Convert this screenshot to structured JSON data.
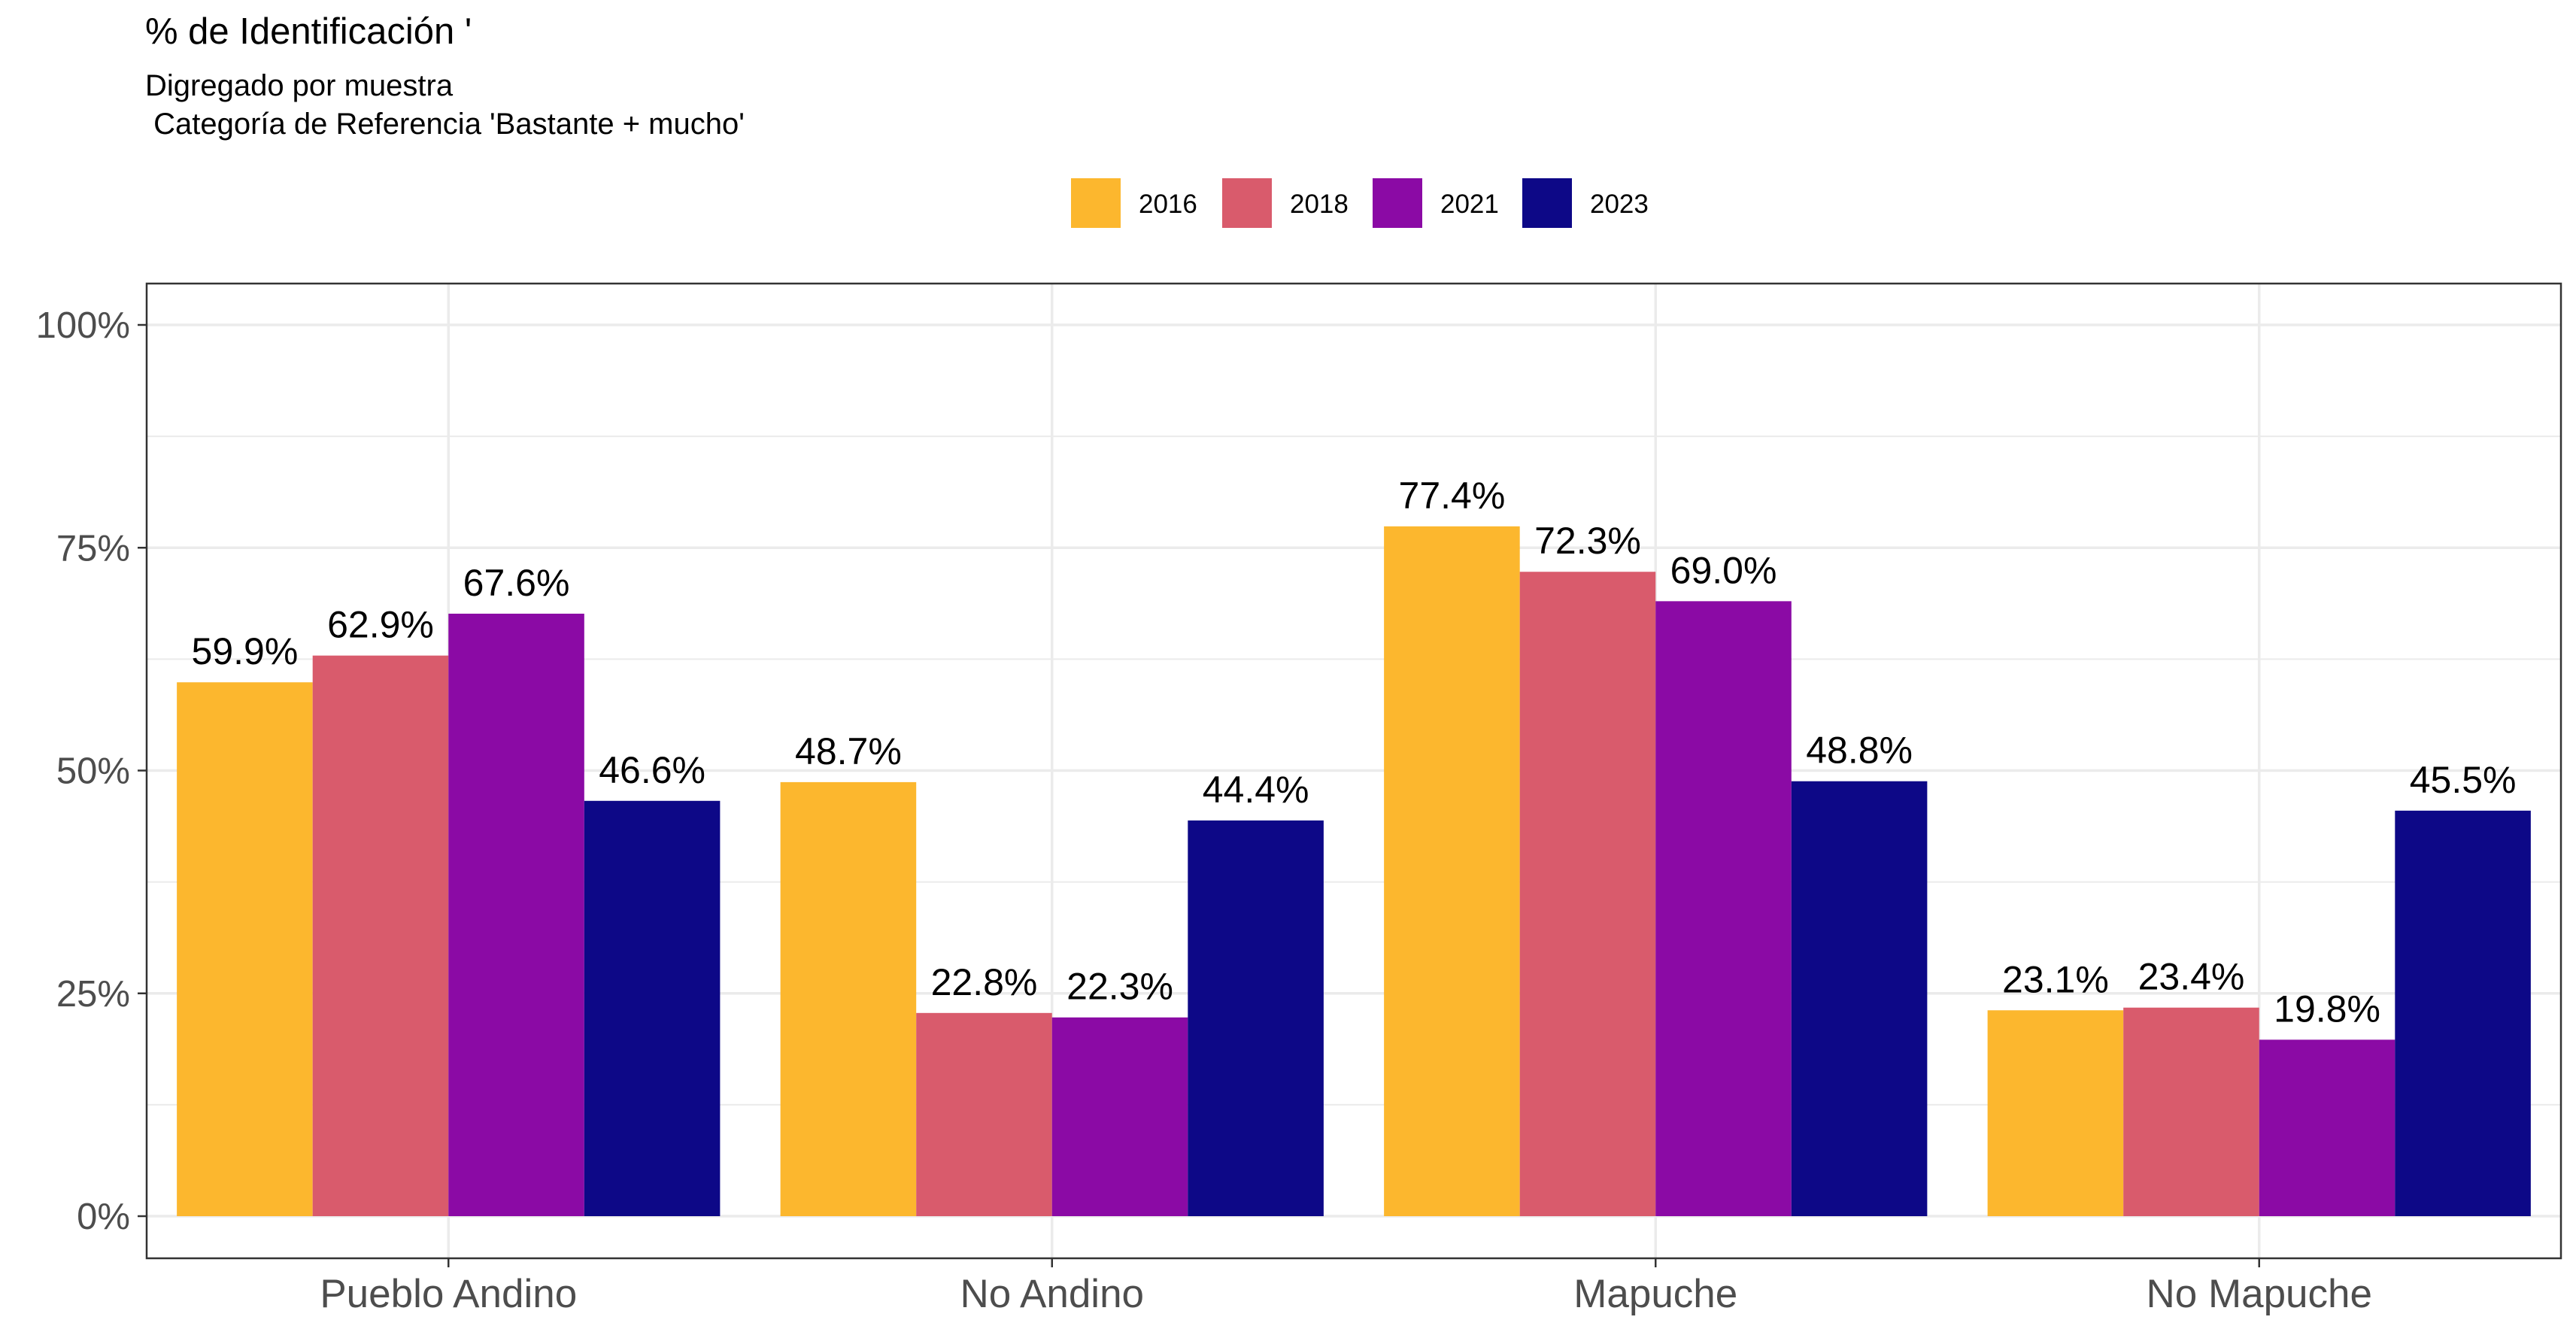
{
  "chart_data": {
    "type": "bar",
    "title": "% de Identificación '",
    "subtitle_lines": [
      "Digregado por muestra",
      " Categoría de Referencia 'Bastante + mucho'"
    ],
    "xlabel": "",
    "ylabel": "",
    "categories": [
      "Pueblo Andino",
      "No Andino",
      "Mapuche",
      "No Mapuche"
    ],
    "series": [
      {
        "name": "2016",
        "color": "#FCB72E",
        "values": [
          59.9,
          48.7,
          77.4,
          23.1
        ]
      },
      {
        "name": "2018",
        "color": "#D95B6C",
        "values": [
          62.9,
          22.8,
          72.3,
          23.4
        ]
      },
      {
        "name": "2021",
        "color": "#8B0AA5",
        "values": [
          67.6,
          22.3,
          69.0,
          19.8
        ]
      },
      {
        "name": "2023",
        "color": "#0D0887",
        "values": [
          46.6,
          44.4,
          48.8,
          45.5
        ]
      }
    ],
    "data_labels": [
      [
        "59.9%",
        "48.7%",
        "77.4%",
        "23.1%"
      ],
      [
        "62.9%",
        "22.8%",
        "72.3%",
        "23.4%"
      ],
      [
        "67.6%",
        "22.3%",
        "69.0%",
        "19.8%"
      ],
      [
        "46.6%",
        "44.4%",
        "48.8%",
        "45.5%"
      ]
    ],
    "ylim": [
      0,
      100
    ],
    "y_ticks": [
      0,
      25,
      50,
      75,
      100
    ],
    "y_tick_labels": [
      "0%",
      "25%",
      "50%",
      "75%",
      "100%"
    ],
    "grid": true,
    "legend_position": "top"
  }
}
